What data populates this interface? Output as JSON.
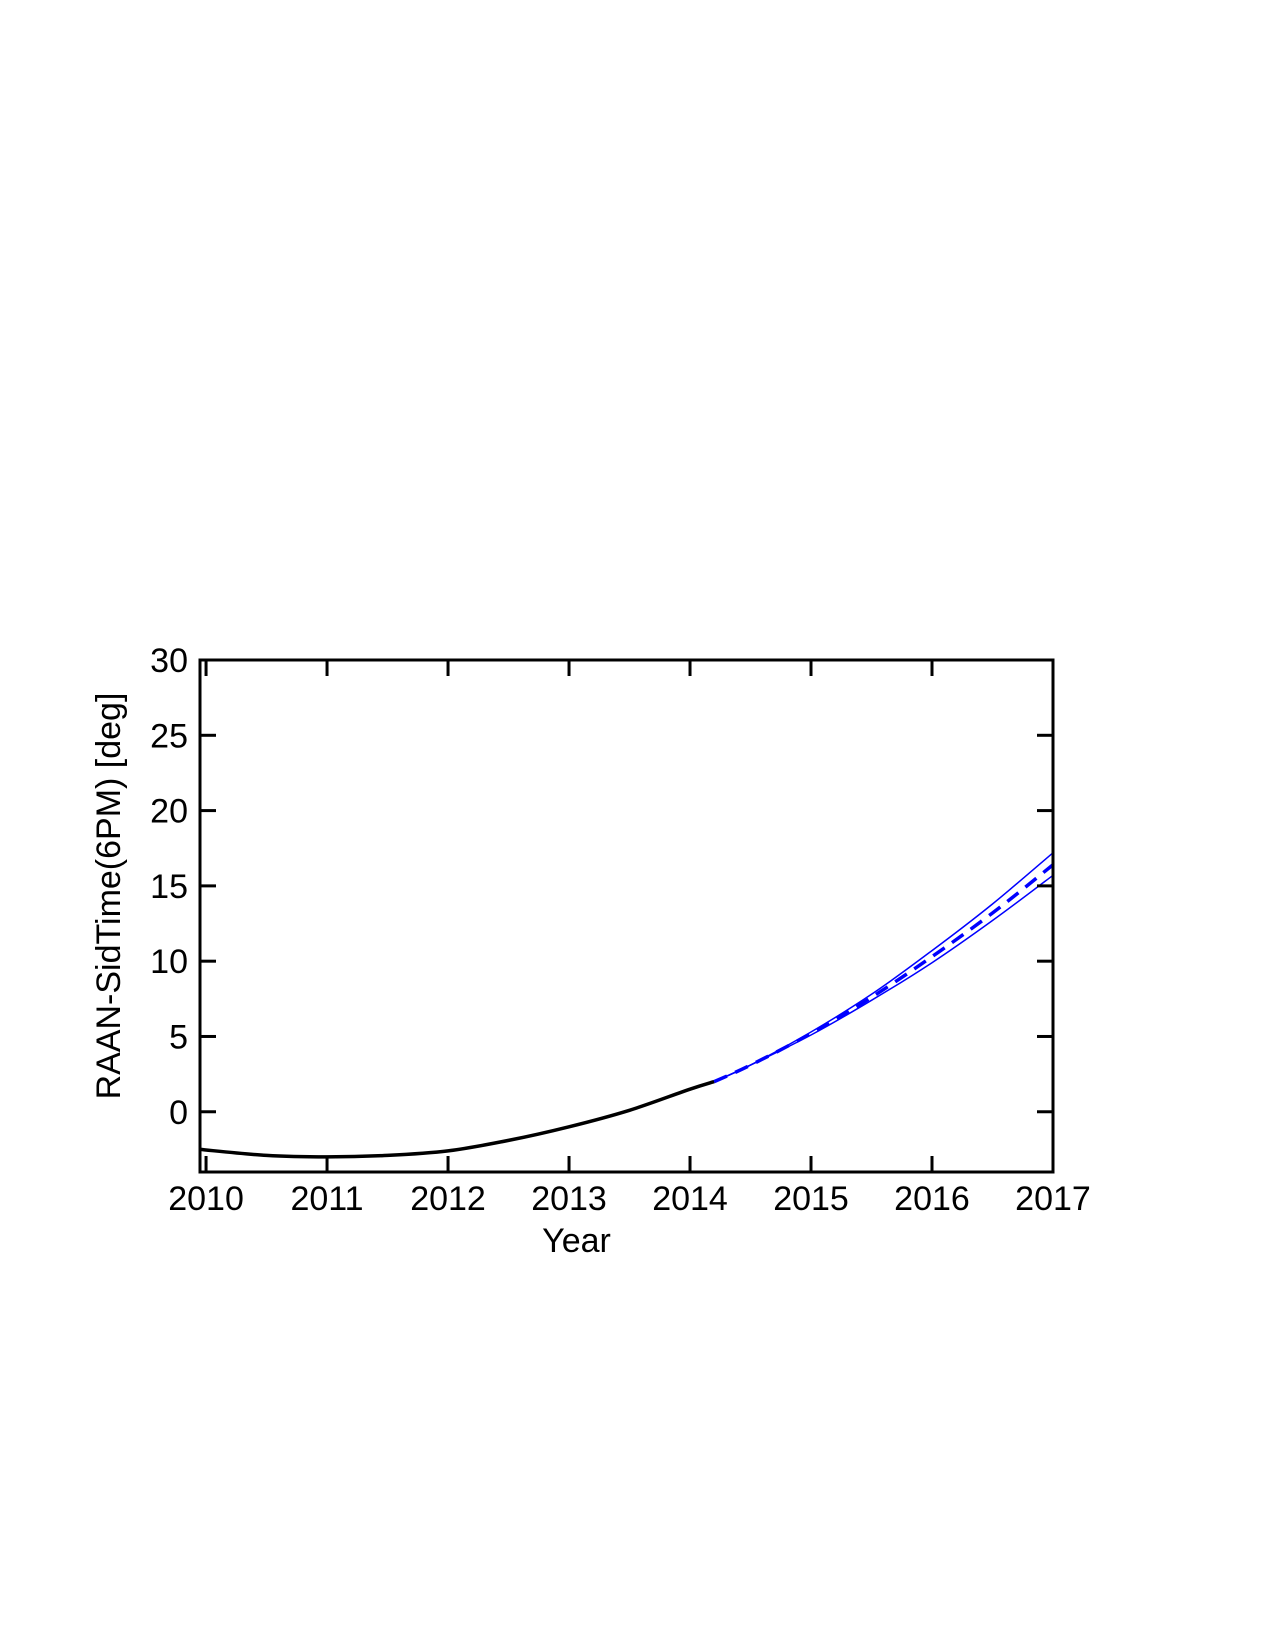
{
  "chart_data": {
    "type": "line",
    "title": "",
    "xlabel": "Year",
    "ylabel": "RAAN-SidTime(6PM) [deg]",
    "xlim": [
      2009.95,
      2017.0
    ],
    "ylim": [
      -4,
      30
    ],
    "x_ticks": [
      2010,
      2011,
      2012,
      2013,
      2014,
      2015,
      2016,
      2017
    ],
    "y_ticks": [
      0,
      5,
      10,
      15,
      20,
      25,
      30
    ],
    "x_tick_labels": [
      "2010",
      "2011",
      "2012",
      "2013",
      "2014",
      "2015",
      "2016",
      "2017"
    ],
    "y_tick_labels": [
      "0",
      "5",
      "10",
      "15",
      "20",
      "25",
      "30"
    ],
    "grid": false,
    "legend": "none",
    "series": [
      {
        "style": "solid",
        "color": "#000000",
        "x": [
          2009.95,
          2010.5,
          2011.0,
          2011.5,
          2012.0,
          2012.5,
          2013.0,
          2013.5,
          2014.0,
          2014.2
        ],
        "y": [
          -2.5,
          -2.9,
          -3.0,
          -2.9,
          -2.6,
          -1.9,
          -1.0,
          0.1,
          1.5,
          2.0
        ]
      },
      {
        "style": "dashed",
        "color": "#0000ff",
        "x": [
          2014.2,
          2014.5,
          2015.0,
          2015.5,
          2016.0,
          2016.5,
          2017.0
        ],
        "y": [
          2.0,
          3.1,
          5.2,
          7.6,
          10.3,
          13.2,
          16.4
        ]
      },
      {
        "style": "thin-upper",
        "color": "#0000ff",
        "x": [
          2014.2,
          2014.5,
          2015.0,
          2015.5,
          2016.0,
          2016.5,
          2017.0
        ],
        "y": [
          2.0,
          3.1,
          5.3,
          7.8,
          10.7,
          13.8,
          17.2
        ]
      },
      {
        "style": "thin-lower",
        "color": "#0000ff",
        "x": [
          2014.2,
          2014.5,
          2015.0,
          2015.5,
          2016.0,
          2016.5,
          2017.0
        ],
        "y": [
          2.0,
          3.1,
          5.1,
          7.4,
          9.9,
          12.7,
          15.7
        ]
      }
    ]
  }
}
